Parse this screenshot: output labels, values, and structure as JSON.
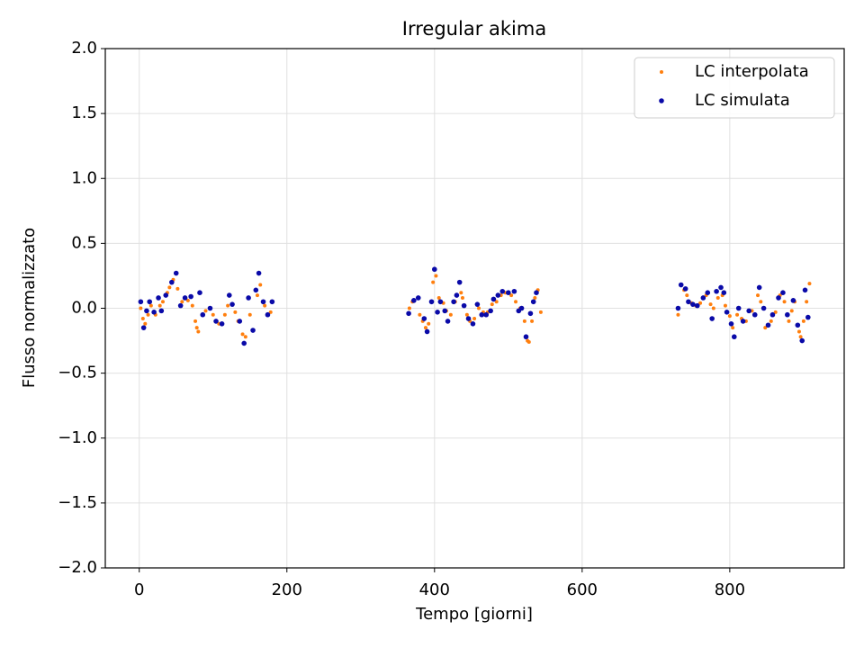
{
  "chart_data": {
    "type": "scatter",
    "title": "Irregular akima",
    "x_label": "Tempo [giorni]",
    "y_label": "Flusso normalizzato",
    "xlim": [
      -46,
      955
    ],
    "ylim": [
      -2,
      2
    ],
    "xticks": [
      0,
      200,
      400,
      600,
      800
    ],
    "yticks": [
      {
        "value": -2,
        "label": "−2.0"
      },
      {
        "value": -1.5,
        "label": "−1.5"
      },
      {
        "value": -1,
        "label": "−1.0"
      },
      {
        "value": -0.5,
        "label": "−0.5"
      },
      {
        "value": 0,
        "label": "0.0"
      },
      {
        "value": 0.5,
        "label": "0.5"
      },
      {
        "value": 1,
        "label": "1.0"
      },
      {
        "value": 1.5,
        "label": "1.5"
      },
      {
        "value": 2,
        "label": "2.0"
      }
    ],
    "grid": true,
    "legend": "upper right",
    "series": [
      {
        "name": "LC interpolata",
        "color": "#ff7f0e",
        "x": [
          2,
          5,
          8,
          12,
          16,
          22,
          28,
          32,
          38,
          41,
          46,
          52,
          58,
          66,
          72,
          76,
          78,
          80,
          90,
          100,
          108,
          116,
          120,
          130,
          134,
          140,
          144,
          150,
          160,
          164,
          170,
          178,
          366,
          370,
          380,
          384,
          388,
          392,
          398,
          402,
          406,
          412,
          416,
          422,
          428,
          436,
          438,
          444,
          448,
          454,
          460,
          466,
          472,
          478,
          484,
          490,
          496,
          504,
          510,
          516,
          522,
          526,
          528,
          532,
          536,
          540,
          544,
          730,
          738,
          742,
          748,
          754,
          760,
          768,
          774,
          778,
          784,
          790,
          794,
          800,
          804,
          810,
          816,
          822,
          830,
          838,
          842,
          848,
          856,
          862,
          868,
          874,
          880,
          884,
          888,
          894,
          896,
          900,
          904,
          908
        ],
        "values": [
          0.0,
          -0.08,
          -0.12,
          -0.05,
          0.02,
          -0.05,
          0.02,
          0.05,
          0.12,
          0.16,
          0.22,
          0.15,
          0.05,
          0.06,
          0.02,
          -0.1,
          -0.15,
          -0.18,
          -0.02,
          -0.05,
          -0.12,
          -0.05,
          0.02,
          -0.03,
          -0.1,
          -0.2,
          -0.22,
          -0.05,
          0.1,
          0.18,
          0.02,
          -0.03,
          0.0,
          0.05,
          -0.05,
          -0.1,
          -0.15,
          -0.12,
          0.2,
          0.25,
          0.08,
          0.04,
          -0.02,
          -0.05,
          0.05,
          0.12,
          0.08,
          -0.05,
          -0.1,
          -0.08,
          0.0,
          -0.03,
          -0.03,
          0.03,
          0.05,
          0.1,
          0.12,
          0.1,
          0.05,
          0.0,
          -0.1,
          -0.25,
          -0.26,
          -0.1,
          0.08,
          0.14,
          -0.03,
          -0.05,
          0.14,
          0.1,
          0.04,
          0.02,
          0.04,
          0.1,
          0.03,
          0.0,
          0.08,
          0.1,
          0.02,
          -0.06,
          -0.15,
          -0.05,
          -0.08,
          -0.1,
          -0.02,
          0.1,
          0.05,
          -0.15,
          -0.1,
          -0.03,
          0.1,
          0.05,
          -0.1,
          -0.02,
          0.05,
          -0.18,
          -0.22,
          -0.1,
          0.05,
          0.19
        ]
      },
      {
        "name": "LC simulata",
        "color": "#0a0aa8",
        "x": [
          2,
          6,
          10,
          14,
          20,
          26,
          30,
          36,
          44,
          50,
          56,
          62,
          70,
          82,
          86,
          96,
          104,
          112,
          122,
          126,
          136,
          142,
          148,
          154,
          158,
          162,
          168,
          174,
          180,
          365,
          372,
          378,
          386,
          390,
          396,
          400,
          404,
          408,
          414,
          418,
          426,
          430,
          434,
          440,
          446,
          452,
          458,
          464,
          470,
          476,
          480,
          486,
          492,
          500,
          508,
          514,
          518,
          524,
          530,
          534,
          538,
          730,
          734,
          740,
          744,
          750,
          756,
          764,
          770,
          776,
          782,
          788,
          792,
          796,
          802,
          806,
          812,
          818,
          826,
          834,
          840,
          846,
          852,
          858,
          866,
          872,
          878,
          886,
          892,
          898,
          902,
          906
        ],
        "values": [
          0.05,
          -0.15,
          -0.02,
          0.05,
          -0.03,
          0.08,
          -0.02,
          0.1,
          0.2,
          0.27,
          0.02,
          0.08,
          0.09,
          0.12,
          -0.05,
          0.0,
          -0.1,
          -0.12,
          0.1,
          0.03,
          -0.1,
          -0.27,
          0.08,
          -0.17,
          0.14,
          0.27,
          0.05,
          -0.05,
          0.05,
          -0.04,
          0.06,
          0.08,
          -0.08,
          -0.18,
          0.05,
          0.3,
          -0.03,
          0.05,
          -0.02,
          -0.1,
          0.05,
          0.1,
          0.2,
          0.02,
          -0.08,
          -0.12,
          0.03,
          -0.05,
          -0.05,
          -0.02,
          0.07,
          0.1,
          0.13,
          0.12,
          0.13,
          -0.02,
          0.0,
          -0.22,
          -0.04,
          0.05,
          0.12,
          0.0,
          0.18,
          0.15,
          0.05,
          0.03,
          0.02,
          0.08,
          0.12,
          -0.08,
          0.13,
          0.16,
          0.12,
          -0.03,
          -0.12,
          -0.22,
          0.0,
          -0.1,
          -0.02,
          -0.05,
          0.16,
          0.0,
          -0.13,
          -0.05,
          0.08,
          0.12,
          -0.05,
          0.06,
          -0.13,
          -0.25,
          0.14,
          -0.07
        ]
      }
    ]
  }
}
